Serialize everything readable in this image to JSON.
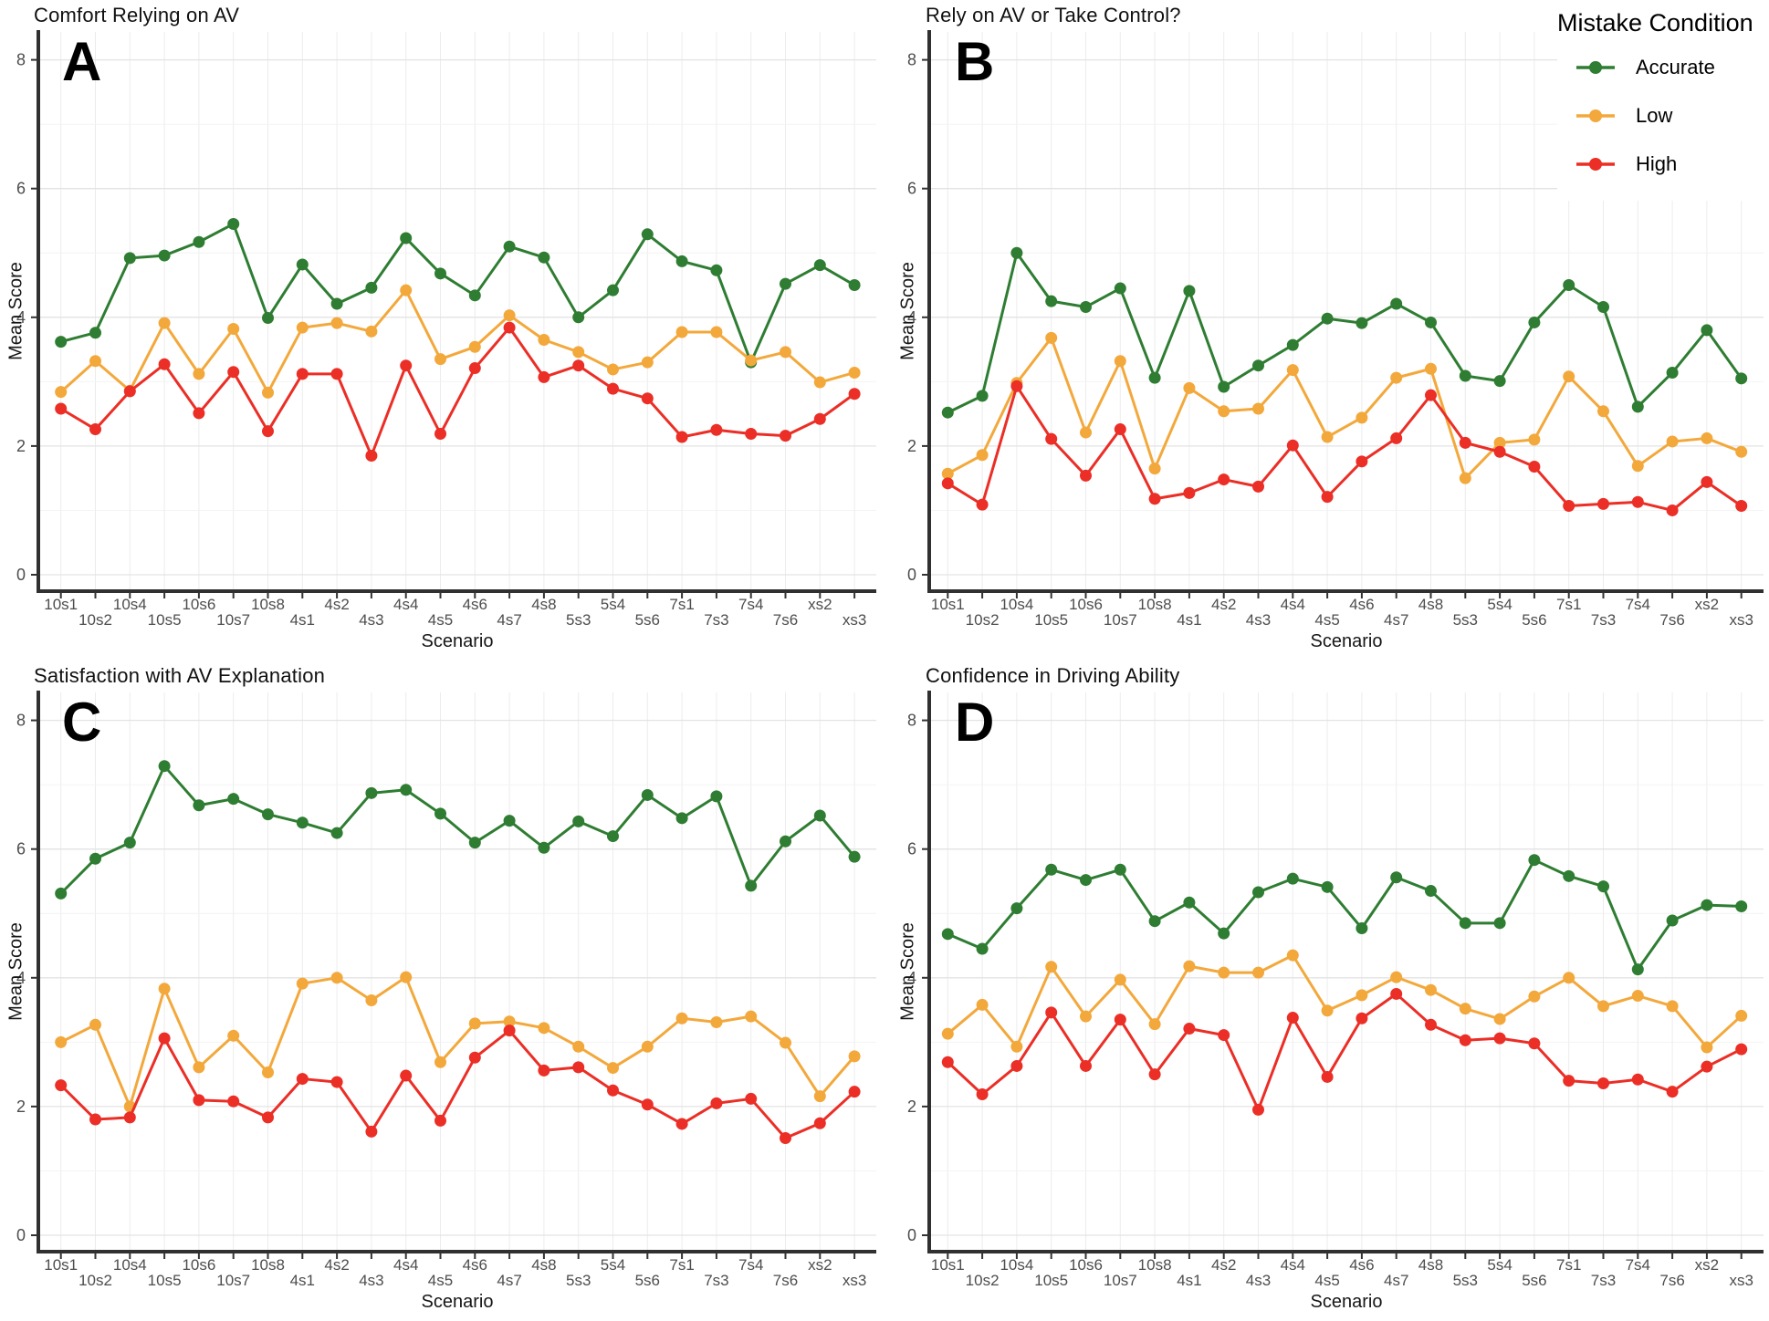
{
  "figure": {
    "background": "#ffffff",
    "axis_color": "#303030",
    "tick_label_color": "#4d4d4d",
    "grid_major_color": "#e3e3e3",
    "grid_minor_color": "#f2f2f2",
    "legend": {
      "title": "Mistake Condition",
      "position": "top-right",
      "items": [
        {
          "label": "Accurate",
          "color": "#2e7d32"
        },
        {
          "label": "Low",
          "color": "#f3a83b"
        },
        {
          "label": "High",
          "color": "#eb2e26"
        }
      ]
    }
  },
  "chart_data": [
    {
      "id": "A",
      "letter": "A",
      "type": "line",
      "title": "Comfort Relying on AV",
      "xlabel": "Scenario",
      "ylabel": "Mean Score",
      "ylim": [
        0,
        8
      ],
      "yticks": [
        0,
        2,
        4,
        6,
        8
      ],
      "grid": true,
      "categories": [
        "10s1",
        "10s2",
        "10s4",
        "10s5",
        "10s6",
        "10s7",
        "10s8",
        "4s1",
        "4s2",
        "4s3",
        "4s4",
        "4s5",
        "4s6",
        "4s7",
        "4s8",
        "5s3",
        "5s4",
        "5s6",
        "7s1",
        "7s3",
        "7s4",
        "7s6",
        "xs2",
        "xs3"
      ],
      "series": [
        {
          "name": "Accurate",
          "color": "#2e7d32",
          "values": [
            3.62,
            3.76,
            4.92,
            4.96,
            5.17,
            5.45,
            3.99,
            4.82,
            4.21,
            4.46,
            5.23,
            4.68,
            4.34,
            5.1,
            4.93,
            4.0,
            4.42,
            5.29,
            4.87,
            4.73,
            3.3,
            4.52,
            4.81,
            4.5
          ]
        },
        {
          "name": "Low",
          "color": "#f3a83b",
          "values": [
            2.84,
            3.32,
            2.86,
            3.91,
            3.12,
            3.82,
            2.83,
            3.84,
            3.91,
            3.78,
            4.42,
            3.35,
            3.54,
            4.03,
            3.65,
            3.46,
            3.19,
            3.3,
            3.77,
            3.77,
            3.33,
            3.46,
            2.99,
            3.14
          ]
        },
        {
          "name": "High",
          "color": "#eb2e26",
          "values": [
            2.58,
            2.26,
            2.85,
            3.27,
            2.51,
            3.15,
            2.23,
            3.12,
            3.12,
            1.85,
            3.25,
            2.19,
            3.21,
            3.84,
            3.07,
            3.25,
            2.89,
            2.74,
            2.14,
            2.25,
            2.19,
            2.16,
            2.42,
            2.81
          ]
        }
      ]
    },
    {
      "id": "B",
      "letter": "B",
      "type": "line",
      "title": "Rely on AV or Take Control?",
      "xlabel": "Scenario",
      "ylabel": "Mean Score",
      "ylim": [
        0,
        8
      ],
      "yticks": [
        0,
        2,
        4,
        6,
        8
      ],
      "grid": true,
      "categories": [
        "10s1",
        "10s2",
        "10s4",
        "10s5",
        "10s6",
        "10s7",
        "10s8",
        "4s1",
        "4s2",
        "4s3",
        "4s4",
        "4s5",
        "4s6",
        "4s7",
        "4s8",
        "5s3",
        "5s4",
        "5s6",
        "7s1",
        "7s3",
        "7s4",
        "7s6",
        "xs2",
        "xs3"
      ],
      "series": [
        {
          "name": "Accurate",
          "color": "#2e7d32",
          "values": [
            2.52,
            2.78,
            5.0,
            4.25,
            4.16,
            4.45,
            3.06,
            4.41,
            2.92,
            3.25,
            3.57,
            3.98,
            3.91,
            4.21,
            3.92,
            3.09,
            3.01,
            3.92,
            4.5,
            4.16,
            2.61,
            3.14,
            3.8,
            3.05
          ]
        },
        {
          "name": "Low",
          "color": "#f3a83b",
          "values": [
            1.57,
            1.86,
            2.98,
            3.68,
            2.21,
            3.32,
            1.65,
            2.9,
            2.54,
            2.58,
            3.18,
            2.14,
            2.44,
            3.06,
            3.2,
            1.5,
            2.05,
            2.1,
            3.08,
            2.54,
            1.69,
            2.07,
            2.12,
            1.91
          ]
        },
        {
          "name": "High",
          "color": "#eb2e26",
          "values": [
            1.42,
            1.09,
            2.93,
            2.11,
            1.54,
            2.26,
            1.18,
            1.27,
            1.48,
            1.37,
            2.01,
            1.21,
            1.76,
            2.12,
            2.79,
            2.05,
            1.91,
            1.68,
            1.07,
            1.1,
            1.13,
            1.0,
            1.44,
            1.07
          ]
        }
      ]
    },
    {
      "id": "C",
      "letter": "C",
      "type": "line",
      "title": "Satisfaction with AV Explanation",
      "xlabel": "Scenario",
      "ylabel": "Mean Score",
      "ylim": [
        0,
        8
      ],
      "yticks": [
        0,
        2,
        4,
        6,
        8
      ],
      "grid": true,
      "categories": [
        "10s1",
        "10s2",
        "10s4",
        "10s5",
        "10s6",
        "10s7",
        "10s8",
        "4s1",
        "4s2",
        "4s3",
        "4s4",
        "4s5",
        "4s6",
        "4s7",
        "4s8",
        "5s3",
        "5s4",
        "5s6",
        "7s1",
        "7s3",
        "7s4",
        "7s6",
        "xs2",
        "xs3"
      ],
      "series": [
        {
          "name": "Accurate",
          "color": "#2e7d32",
          "values": [
            5.31,
            5.85,
            6.1,
            7.29,
            6.68,
            6.78,
            6.54,
            6.41,
            6.25,
            6.87,
            6.92,
            6.55,
            6.1,
            6.44,
            6.02,
            6.43,
            6.2,
            6.84,
            6.48,
            6.82,
            5.43,
            6.12,
            6.52,
            5.88
          ]
        },
        {
          "name": "Low",
          "color": "#f3a83b",
          "values": [
            3.0,
            3.27,
            2.0,
            3.83,
            2.61,
            3.1,
            2.53,
            3.91,
            4.0,
            3.65,
            4.01,
            2.69,
            3.29,
            3.32,
            3.22,
            2.93,
            2.6,
            2.93,
            3.37,
            3.31,
            3.4,
            2.99,
            2.16,
            2.78
          ]
        },
        {
          "name": "High",
          "color": "#eb2e26",
          "values": [
            2.33,
            1.8,
            1.83,
            3.06,
            2.1,
            2.08,
            1.83,
            2.43,
            2.38,
            1.61,
            2.48,
            1.78,
            2.76,
            3.18,
            2.56,
            2.61,
            2.25,
            2.03,
            1.73,
            2.05,
            2.12,
            1.51,
            1.74,
            2.23
          ]
        }
      ]
    },
    {
      "id": "D",
      "letter": "D",
      "type": "line",
      "title": "Confidence in Driving Ability",
      "xlabel": "Scenario",
      "ylabel": "Mean Score",
      "ylim": [
        0,
        8
      ],
      "yticks": [
        0,
        2,
        4,
        6,
        8
      ],
      "grid": true,
      "categories": [
        "10s1",
        "10s2",
        "10s4",
        "10s5",
        "10s6",
        "10s7",
        "10s8",
        "4s1",
        "4s2",
        "4s3",
        "4s4",
        "4s5",
        "4s6",
        "4s7",
        "4s8",
        "5s3",
        "5s4",
        "5s6",
        "7s1",
        "7s3",
        "7s4",
        "7s6",
        "xs2",
        "xs3"
      ],
      "series": [
        {
          "name": "Accurate",
          "color": "#2e7d32",
          "values": [
            4.68,
            4.45,
            5.08,
            5.68,
            5.52,
            5.68,
            4.88,
            5.17,
            4.69,
            5.33,
            5.54,
            5.41,
            4.77,
            5.56,
            5.35,
            4.85,
            4.85,
            5.83,
            5.58,
            5.42,
            4.13,
            4.89,
            5.13,
            5.11
          ]
        },
        {
          "name": "Low",
          "color": "#f3a83b",
          "values": [
            3.13,
            3.58,
            2.93,
            4.17,
            3.4,
            3.97,
            3.28,
            4.18,
            4.08,
            4.08,
            4.35,
            3.49,
            3.73,
            4.01,
            3.81,
            3.52,
            3.36,
            3.71,
            4.0,
            3.56,
            3.72,
            3.56,
            2.92,
            3.41
          ]
        },
        {
          "name": "High",
          "color": "#eb2e26",
          "values": [
            2.69,
            2.19,
            2.63,
            3.46,
            2.63,
            3.35,
            2.5,
            3.21,
            3.11,
            1.95,
            3.38,
            2.46,
            3.37,
            3.75,
            3.27,
            3.03,
            3.06,
            2.98,
            2.4,
            2.36,
            2.42,
            2.23,
            2.62,
            2.89
          ]
        }
      ]
    }
  ]
}
